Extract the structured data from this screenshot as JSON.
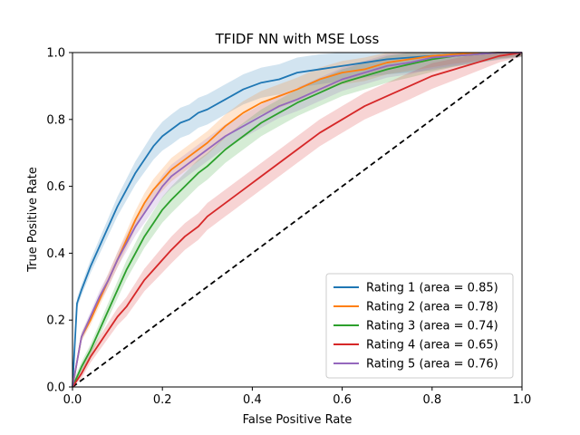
{
  "chart_data": {
    "type": "line",
    "title": "TFIDF NN with MSE Loss",
    "xlabel": "False Positive Rate",
    "ylabel": "True Positive Rate",
    "xlim": [
      0.0,
      1.0
    ],
    "ylim": [
      0.0,
      1.0
    ],
    "xticks": [
      "0.0",
      "0.2",
      "0.4",
      "0.6",
      "0.8",
      "1.0"
    ],
    "yticks": [
      "0.0",
      "0.2",
      "0.4",
      "0.6",
      "0.8",
      "1.0"
    ],
    "grid": false,
    "legend_position": "lower-right",
    "reference_line": {
      "x": [
        0,
        1
      ],
      "y": [
        0,
        1
      ],
      "style": "dashed",
      "color": "#000000"
    },
    "series": [
      {
        "name": "Rating 1 (area = 0.85)",
        "color": "#1f77b4",
        "x": [
          0,
          0.01,
          0.02,
          0.04,
          0.06,
          0.08,
          0.1,
          0.12,
          0.14,
          0.16,
          0.18,
          0.2,
          0.22,
          0.24,
          0.26,
          0.28,
          0.3,
          0.34,
          0.38,
          0.42,
          0.46,
          0.5,
          0.55,
          0.6,
          0.65,
          0.7,
          0.75,
          0.8,
          0.85,
          0.9,
          0.95,
          1.0
        ],
        "y": [
          0,
          0.25,
          0.29,
          0.36,
          0.42,
          0.48,
          0.54,
          0.59,
          0.64,
          0.68,
          0.72,
          0.75,
          0.77,
          0.79,
          0.8,
          0.82,
          0.83,
          0.86,
          0.89,
          0.91,
          0.92,
          0.94,
          0.95,
          0.96,
          0.97,
          0.98,
          0.985,
          0.99,
          0.995,
          0.998,
          1.0,
          1.0
        ],
        "band": 0.045
      },
      {
        "name": "Rating 2 (area = 0.78)",
        "color": "#ff7f0e",
        "x": [
          0,
          0.02,
          0.04,
          0.06,
          0.08,
          0.1,
          0.12,
          0.14,
          0.16,
          0.18,
          0.2,
          0.22,
          0.25,
          0.28,
          0.3,
          0.34,
          0.38,
          0.42,
          0.46,
          0.5,
          0.55,
          0.6,
          0.65,
          0.7,
          0.75,
          0.8,
          0.85,
          0.9,
          0.95,
          1.0
        ],
        "y": [
          0,
          0.15,
          0.2,
          0.26,
          0.32,
          0.38,
          0.44,
          0.5,
          0.55,
          0.59,
          0.62,
          0.65,
          0.68,
          0.71,
          0.73,
          0.78,
          0.82,
          0.85,
          0.87,
          0.89,
          0.92,
          0.94,
          0.95,
          0.97,
          0.98,
          0.99,
          0.995,
          0.998,
          1.0,
          1.0
        ],
        "band": 0.035
      },
      {
        "name": "Rating 3 (area = 0.74)",
        "color": "#2ca02c",
        "x": [
          0,
          0.02,
          0.04,
          0.06,
          0.08,
          0.1,
          0.12,
          0.14,
          0.16,
          0.18,
          0.2,
          0.22,
          0.25,
          0.28,
          0.3,
          0.34,
          0.38,
          0.42,
          0.46,
          0.5,
          0.55,
          0.6,
          0.65,
          0.7,
          0.75,
          0.8,
          0.85,
          0.9,
          0.95,
          1.0
        ],
        "y": [
          0,
          0.06,
          0.11,
          0.17,
          0.23,
          0.29,
          0.35,
          0.4,
          0.45,
          0.49,
          0.53,
          0.56,
          0.6,
          0.64,
          0.66,
          0.71,
          0.75,
          0.79,
          0.82,
          0.85,
          0.88,
          0.91,
          0.93,
          0.95,
          0.965,
          0.98,
          0.99,
          0.995,
          1.0,
          1.0
        ],
        "band": 0.04
      },
      {
        "name": "Rating 4 (area = 0.65)",
        "color": "#d62728",
        "x": [
          0,
          0.02,
          0.04,
          0.06,
          0.08,
          0.1,
          0.12,
          0.14,
          0.16,
          0.18,
          0.2,
          0.22,
          0.25,
          0.28,
          0.3,
          0.34,
          0.38,
          0.42,
          0.46,
          0.5,
          0.55,
          0.6,
          0.65,
          0.7,
          0.75,
          0.8,
          0.85,
          0.9,
          0.95,
          1.0
        ],
        "y": [
          0,
          0.04,
          0.09,
          0.13,
          0.17,
          0.21,
          0.24,
          0.28,
          0.32,
          0.35,
          0.38,
          0.41,
          0.45,
          0.48,
          0.51,
          0.55,
          0.59,
          0.63,
          0.67,
          0.71,
          0.76,
          0.8,
          0.84,
          0.87,
          0.9,
          0.93,
          0.95,
          0.97,
          0.99,
          1.0
        ],
        "band": 0.04
      },
      {
        "name": "Rating 5 (area = 0.76)",
        "color": "#9467bd",
        "x": [
          0,
          0.02,
          0.04,
          0.06,
          0.08,
          0.1,
          0.12,
          0.14,
          0.16,
          0.18,
          0.2,
          0.22,
          0.25,
          0.28,
          0.3,
          0.34,
          0.38,
          0.42,
          0.46,
          0.5,
          0.55,
          0.6,
          0.65,
          0.7,
          0.75,
          0.8,
          0.85,
          0.9,
          0.95,
          1.0
        ],
        "y": [
          0,
          0.15,
          0.21,
          0.27,
          0.32,
          0.38,
          0.43,
          0.48,
          0.52,
          0.56,
          0.6,
          0.63,
          0.66,
          0.69,
          0.71,
          0.75,
          0.78,
          0.81,
          0.84,
          0.86,
          0.89,
          0.92,
          0.94,
          0.96,
          0.97,
          0.985,
          0.99,
          0.995,
          1.0,
          1.0
        ],
        "band": 0.035
      }
    ]
  }
}
